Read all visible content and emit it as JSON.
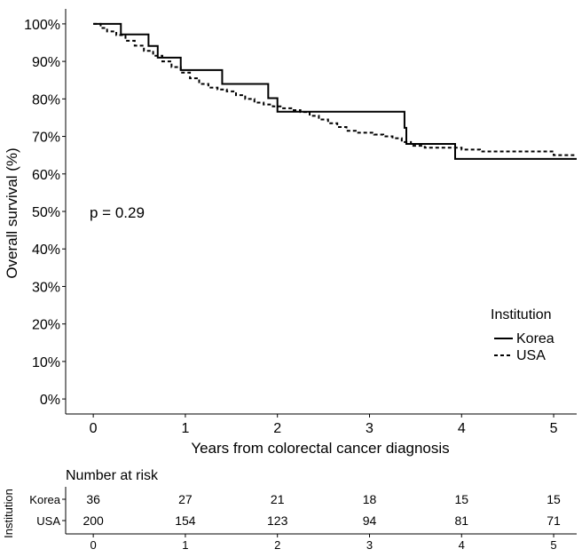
{
  "chart_data": {
    "type": "line",
    "title": "",
    "xlabel": "Years from colorectal cancer diagnosis",
    "ylabel": "Overall survival (%)",
    "xlim": [
      -0.3,
      5.25
    ],
    "ylim": [
      -4,
      104
    ],
    "x_ticks": [
      0,
      1,
      2,
      3,
      4,
      5
    ],
    "x_tick_labels": [
      "0",
      "1",
      "2",
      "3",
      "4",
      "5"
    ],
    "y_ticks": [
      0,
      10,
      20,
      30,
      40,
      50,
      60,
      70,
      80,
      90,
      100
    ],
    "y_tick_labels": [
      "0%",
      "10%",
      "20%",
      "30%",
      "40%",
      "50%",
      "60%",
      "70%",
      "80%",
      "90%",
      "100%"
    ],
    "grid": false,
    "annotation": "p = 0.29",
    "legend": {
      "title": "Institution",
      "position": "right",
      "entries": [
        {
          "name": "Korea",
          "style": "solid"
        },
        {
          "name": "USA",
          "style": "dashed"
        }
      ]
    },
    "series": [
      {
        "name": "Korea",
        "style": "solid",
        "x": [
          0,
          0.3,
          0.6,
          0.7,
          0.95,
          1.4,
          1.9,
          2.0,
          3.38,
          3.4,
          3.93,
          5.25
        ],
        "y": [
          100,
          97.2,
          94.1,
          91.0,
          87.7,
          84.0,
          80.2,
          76.6,
          72.3,
          68.0,
          64.0,
          64.0
        ]
      },
      {
        "name": "USA",
        "style": "dashed",
        "x": [
          0,
          0.08,
          0.15,
          0.25,
          0.35,
          0.45,
          0.55,
          0.65,
          0.75,
          0.85,
          0.95,
          1.05,
          1.15,
          1.25,
          1.35,
          1.45,
          1.55,
          1.65,
          1.75,
          1.85,
          1.95,
          2.05,
          2.15,
          2.25,
          2.35,
          2.45,
          2.55,
          2.65,
          2.75,
          2.85,
          2.95,
          3.05,
          3.15,
          3.25,
          3.35,
          3.45,
          3.6,
          3.85,
          4.0,
          4.2,
          5.0,
          5.25
        ],
        "y": [
          100,
          98.9,
          98.0,
          97.0,
          95.5,
          94.2,
          92.8,
          91.5,
          90.0,
          88.5,
          87.0,
          85.5,
          84.0,
          83.0,
          82.5,
          82.0,
          81.0,
          80.0,
          79.0,
          78.5,
          78.0,
          77.5,
          77.0,
          76.5,
          75.5,
          74.5,
          73.5,
          72.5,
          71.5,
          71.0,
          71.0,
          70.5,
          70.0,
          69.5,
          68.5,
          67.5,
          67.0,
          67.0,
          66.5,
          66.0,
          65.0,
          65.0
        ]
      }
    ],
    "risk_table": {
      "title": "Number at risk",
      "ylabel": "Institution",
      "x_ticks": [
        "0",
        "1",
        "2",
        "3",
        "4",
        "5"
      ],
      "rows": [
        {
          "label": "Korea",
          "values": [
            "36",
            "27",
            "21",
            "18",
            "15",
            "15"
          ]
        },
        {
          "label": "USA",
          "values": [
            "200",
            "154",
            "123",
            "94",
            "81",
            "71"
          ]
        }
      ]
    }
  }
}
